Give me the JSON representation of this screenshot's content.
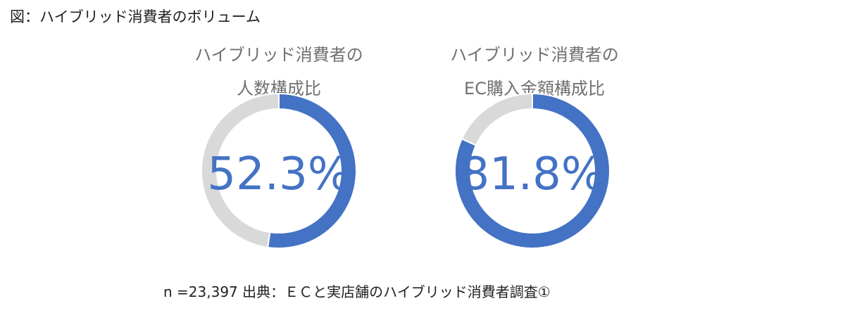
{
  "figure_title": "図：ハイブリッド消費者のボリューム",
  "chart_data": [
    {
      "type": "pie",
      "variant": "donut",
      "title_lines": [
        "ハイブリッド消費者の",
        "人数構成比"
      ],
      "value_label": "52.3%",
      "slices": [
        {
          "value": 52.3,
          "color": "#4472c4"
        },
        {
          "value": 47.7,
          "color": "#d9d9d9"
        }
      ]
    },
    {
      "type": "pie",
      "variant": "donut",
      "title_lines": [
        "ハイブリッド消費者の",
        "EC購入金額構成比"
      ],
      "value_label": "81.8%",
      "slices": [
        {
          "value": 81.8,
          "color": "#4472c4"
        },
        {
          "value": 18.2,
          "color": "#d9d9d9"
        }
      ]
    }
  ],
  "footer": "n =23,397 出典：ＥＣと実店舗のハイブリッド消費者調査①"
}
